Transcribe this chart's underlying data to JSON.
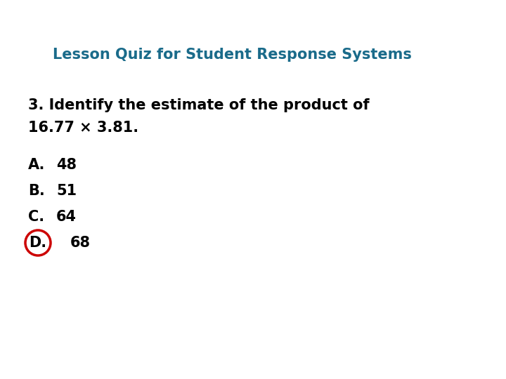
{
  "title": "Lesson Quiz for Student Response Systems",
  "title_color": "#1a6b8a",
  "question_line1": "3. Identify the estimate of the product of",
  "question_line2": "16.77 × 3.81.",
  "options": [
    {
      "letter": "A.",
      "text": "48",
      "circled": false
    },
    {
      "letter": "B.",
      "text": "51",
      "circled": false
    },
    {
      "letter": "C.",
      "text": "64",
      "circled": false
    },
    {
      "letter": "D.",
      "text": "68",
      "circled": true
    }
  ],
  "background_color": "#ffffff",
  "text_color": "#000000",
  "circle_color": "#cc0000",
  "title_fontsize": 15,
  "question_fontsize": 15,
  "option_fontsize": 15
}
